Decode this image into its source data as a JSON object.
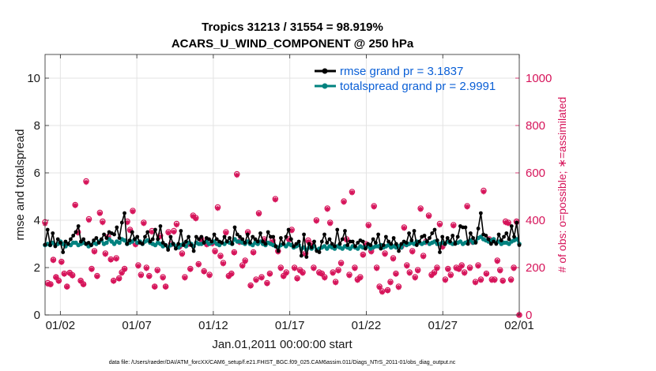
{
  "chart_data": {
    "type": "line",
    "title": "Tropics 31213 / 31554 = 98.919%",
    "subtitle": "ACARS_U_WIND_COMPONENT @ 250 hPa",
    "xlabel": "Jan.01,2011 00:00:00 start",
    "ylabel": "rmse and totalspread",
    "y2label": "# of obs: o=possible; ∗=assimilated",
    "xlim": [
      0,
      31
    ],
    "ylim": [
      0,
      11
    ],
    "y2lim": [
      0,
      1100
    ],
    "x_ticks": [
      {
        "value": 1,
        "label": "01/02"
      },
      {
        "value": 6,
        "label": "01/07"
      },
      {
        "value": 11,
        "label": "01/12"
      },
      {
        "value": 16,
        "label": "01/17"
      },
      {
        "value": 21,
        "label": "01/22"
      },
      {
        "value": 26,
        "label": "01/27"
      },
      {
        "value": 31,
        "label": "02/01"
      }
    ],
    "y_ticks": [
      0,
      2,
      4,
      6,
      8,
      10
    ],
    "y2_ticks": [
      0,
      200,
      400,
      600,
      800,
      1000
    ],
    "grid": true,
    "legend_position": "top-right",
    "colors": {
      "rmse": "#000000",
      "spread": "#00827f",
      "obs": "#d6145a",
      "legend_text": "#0a5fd6"
    },
    "series": [
      {
        "name": "rmse grand pr = 3.1837",
        "color": "#000000",
        "axis": "left",
        "values": [
          2.97,
          3.6,
          2.95,
          3.45,
          2.9,
          3.2,
          3.05,
          2.65,
          3.1,
          3.0,
          3.2,
          3.35,
          3.5,
          3.75,
          3.1,
          3.2,
          3.0,
          3.05,
          2.95,
          3.15,
          3.25,
          3.05,
          3.2,
          3.4,
          3.25,
          3.5,
          3.45,
          3.4,
          3.7,
          3.25,
          3.9,
          4.3,
          3.0,
          3.15,
          3.5,
          3.2,
          3.3,
          3.05,
          3.0,
          3.3,
          3.5,
          3.1,
          3.2,
          3.6,
          3.2,
          3.75,
          3.05,
          2.95,
          2.75,
          3.3,
          3.0,
          2.8,
          3.0,
          3.55,
          2.95,
          3.1,
          3.3,
          2.95,
          2.7,
          3.3,
          3.2,
          3.3,
          3.05,
          3.25,
          3.2,
          3.1,
          3.4,
          3.2,
          3.1,
          3.05,
          3.3,
          3.1,
          3.25,
          3.0,
          3.7,
          3.4,
          3.3,
          3.2,
          3.05,
          3.4,
          3.05,
          3.3,
          3.2,
          3.1,
          3.45,
          3.1,
          3.0,
          3.5,
          3.3,
          3.3,
          2.9,
          2.7,
          3.25,
          3.0,
          3.3,
          3.6,
          3.2,
          2.9,
          3.0,
          3.1,
          2.5,
          3.4,
          2.45,
          3.0,
          2.85,
          3.1,
          2.7,
          2.65,
          3.1,
          3.4,
          3.05,
          3.2,
          3.0,
          2.9,
          3.6,
          3.0,
          3.2,
          3.55,
          2.95,
          3.1,
          3.1,
          2.9,
          3.05,
          3.15,
          3.1,
          2.8,
          3.0,
          2.95,
          3.2,
          3.05,
          3.4,
          2.8,
          2.95,
          3.3,
          3.1,
          3.0,
          3.25,
          3.0,
          2.7,
          3.0,
          3.1,
          3.05,
          3.45,
          3.15,
          3.55,
          2.95,
          3.1,
          3.3,
          3.35,
          3.1,
          3.25,
          3.45,
          3.6,
          3.15,
          2.65,
          3.3,
          3.0,
          3.25,
          3.1,
          3.35,
          3.0,
          3.3,
          3.75,
          3.7,
          3.7,
          3.0,
          3.45,
          3.25,
          3.05,
          3.65,
          4.3,
          3.4,
          3.35,
          3.2,
          3.0,
          3.1,
          3.0,
          3.4,
          3.15,
          3.3,
          3.45,
          3.2,
          3.75,
          3.3,
          3.9,
          2.95
        ]
      },
      {
        "name": "totalspread grand pr = 2.9991",
        "color": "#00827f",
        "axis": "left",
        "values": [
          2.95,
          3.0,
          2.95,
          3.05,
          2.95,
          3.0,
          3.1,
          3.0,
          2.9,
          3.0,
          2.95,
          3.05,
          3.05,
          2.95,
          3.0,
          3.05,
          3.0,
          2.9,
          2.95,
          3.05,
          3.0,
          3.1,
          3.15,
          3.0,
          3.05,
          3.2,
          3.1,
          3.0,
          3.1,
          3.05,
          3.2,
          3.15,
          3.0,
          3.05,
          3.1,
          3.2,
          3.05,
          3.1,
          3.0,
          3.1,
          3.15,
          3.05,
          3.0,
          2.95,
          3.05,
          3.0,
          2.9,
          2.95,
          2.85,
          2.95,
          3.0,
          2.9,
          2.85,
          2.95,
          3.0,
          2.9,
          3.05,
          3.0,
          2.9,
          3.05,
          3.0,
          3.0,
          3.05,
          3.1,
          3.0,
          3.05,
          3.1,
          3.0,
          2.95,
          3.05,
          3.0,
          3.1,
          3.05,
          3.0,
          3.2,
          3.1,
          3.1,
          3.05,
          3.0,
          3.1,
          3.0,
          2.95,
          3.05,
          3.0,
          3.1,
          3.0,
          2.95,
          3.05,
          3.0,
          2.95,
          2.9,
          2.85,
          2.95,
          3.0,
          2.9,
          3.0,
          2.95,
          2.85,
          2.9,
          2.95,
          2.8,
          2.85,
          2.75,
          2.85,
          2.8,
          2.9,
          2.75,
          2.8,
          2.85,
          2.9,
          2.8,
          2.9,
          2.85,
          2.8,
          2.9,
          2.85,
          2.8,
          2.9,
          2.85,
          2.8,
          2.9,
          2.85,
          2.8,
          2.9,
          2.85,
          2.85,
          2.9,
          2.8,
          2.85,
          2.9,
          2.9,
          2.95,
          2.85,
          2.9,
          2.95,
          2.85,
          2.9,
          2.85,
          2.9,
          2.85,
          3.0,
          2.95,
          3.0,
          3.05,
          3.0,
          3.1,
          3.05,
          3.0,
          3.05,
          3.1,
          3.0,
          3.05,
          3.1,
          3.0,
          3.0,
          3.05,
          3.0,
          3.1,
          3.05,
          3.0,
          3.05,
          3.05,
          3.1,
          3.0,
          3.05,
          3.1,
          3.15,
          3.05,
          3.1,
          3.25,
          3.3,
          3.2,
          3.15,
          3.1,
          3.15,
          3.2,
          3.05,
          3.1,
          3.0,
          3.05,
          3.05,
          3.0,
          3.1,
          3.15,
          3.2,
          3.0
        ]
      },
      {
        "name": "# of obs possible",
        "color": "#d6145a",
        "axis": "right",
        "marker": "o",
        "values": [
          392,
          135,
          130,
          233,
          160,
          145,
          225,
          175,
          120,
          178,
          168,
          465,
          350,
          145,
          130,
          565,
          405,
          195,
          270,
          165,
          432,
          395,
          260,
          330,
          235,
          145,
          240,
          155,
          180,
          195,
          395,
          360,
          440,
          300,
          210,
          170,
          390,
          200,
          165,
          355,
          120,
          190,
          335,
          160,
          120,
          350,
          300,
          355,
          385,
          290,
          260,
          160,
          300,
          195,
          420,
          410,
          215,
          320,
          185,
          300,
          170,
          305,
          270,
          455,
          250,
          220,
          350,
          165,
          175,
          265,
          595,
          310,
          210,
          230,
          350,
          125,
          265,
          150,
          430,
          160,
          320,
          135,
          175,
          315,
          490,
          270,
          200,
          165,
          180,
          320,
          360,
          200,
          155,
          190,
          180,
          260,
          315,
          300,
          200,
          400,
          180,
          175,
          160,
          450,
          390,
          180,
          140,
          190,
          220,
          480,
          320,
          170,
          520,
          200,
          150,
          160,
          255,
          300,
          380,
          270,
          460,
          200,
          120,
          100,
          260,
          105,
          140,
          240,
          175,
          120,
          290,
          370,
          210,
          180,
          270,
          160,
          190,
          450,
          250,
          310,
          420,
          170,
          180,
          200,
          385,
          290,
          150,
          195,
          170,
          380,
          200,
          195,
          210,
          180,
          460,
          200,
          310,
          140,
          210,
          150,
          525,
          175,
          320,
          150,
          150,
          230,
          190,
          145,
          395,
          390,
          150,
          200,
          395,
          0
        ]
      },
      {
        "name": "# of obs assimilated",
        "color": "#d6145a",
        "axis": "right",
        "marker": "*",
        "values": [
          385,
          130,
          128,
          230,
          158,
          142,
          222,
          172,
          118,
          175,
          165,
          462,
          346,
          142,
          128,
          560,
          400,
          192,
          266,
          162,
          428,
          390,
          256,
          326,
          232,
          142,
          236,
          152,
          176,
          192,
          390,
          356,
          436,
          296,
          206,
          166,
          386,
          196,
          162,
          350,
          118,
          186,
          330,
          156,
          118,
          346,
          296,
          350,
          380,
          286,
          256,
          156,
          296,
          192,
          416,
          406,
          212,
          316,
          182,
          296,
          166,
          300,
          266,
          450,
          246,
          216,
          346,
          162,
          172,
          262,
          590,
          306,
          206,
          226,
          346,
          122,
          262,
          146,
          426,
          156,
          316,
          132,
          172,
          310,
          486,
          266,
          196,
          162,
          176,
          316,
          356,
          196,
          152,
          186,
          176,
          256,
          310,
          296,
          196,
          396,
          176,
          172,
          156,
          446,
          386,
          176,
          136,
          186,
          216,
          476,
          316,
          166,
          516,
          196,
          146,
          156,
          252,
          296,
          376,
          266,
          456,
          196,
          116,
          96,
          256,
          102,
          136,
          236,
          172,
          116,
          286,
          366,
          206,
          176,
          266,
          156,
          186,
          446,
          246,
          306,
          416,
          166,
          176,
          196,
          380,
          286,
          146,
          192,
          166,
          376,
          196,
          192,
          206,
          176,
          456,
          196,
          306,
          136,
          206,
          146,
          520,
          172,
          316,
          146,
          146,
          226,
          186,
          142,
          390,
          386,
          146,
          196,
          390,
          0
        ]
      }
    ]
  },
  "footer": {
    "data_file": "data file: /Users/raeder/DAI/ATM_forcXX/CAM6_setup/f.e21.FHIST_BGC.f09_025.CAM6assim.011/Diags_NTrS_2011-01/obs_diag_output.nc"
  }
}
